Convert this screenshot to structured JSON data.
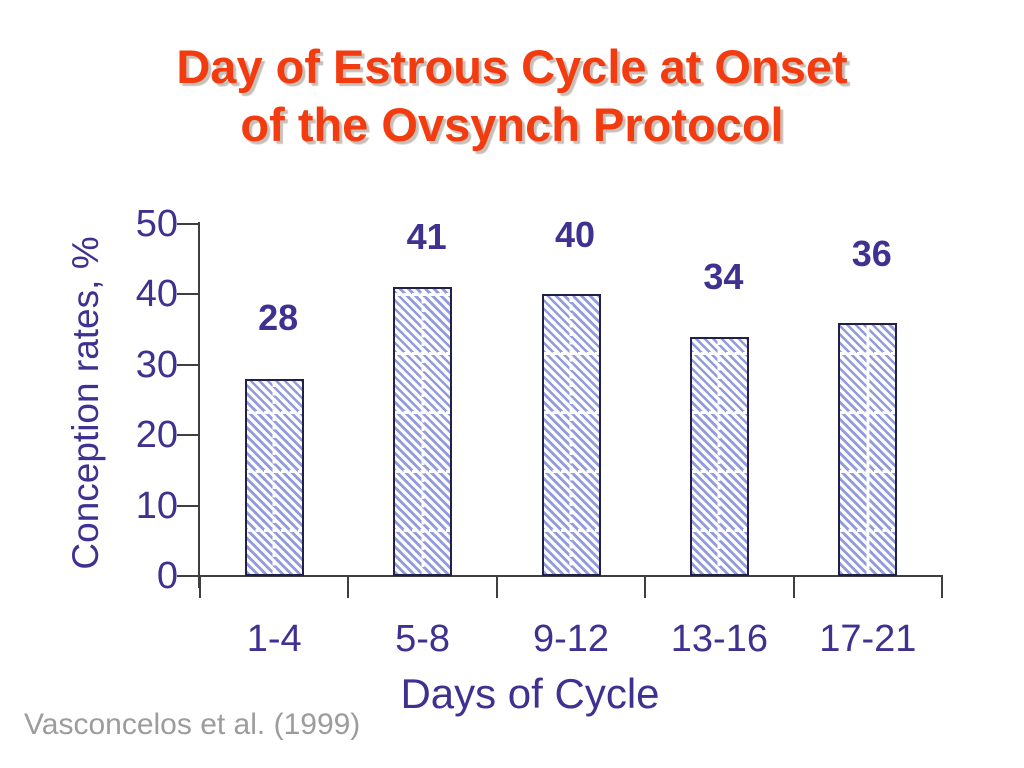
{
  "slide": {
    "title_line1": "Day of Estrous Cycle at Onset",
    "title_line2": "of the Ovsynch Protocol",
    "citation": "Vasconcelos et al. (1999)"
  },
  "chart_data": {
    "type": "bar",
    "title": "Day of Estrous Cycle at Onset of the Ovsynch Protocol",
    "categories": [
      "1-4",
      "5-8",
      "9-12",
      "13-16",
      "17-21"
    ],
    "values": [
      28,
      41,
      40,
      34,
      36
    ],
    "xlabel": "Days of Cycle",
    "ylabel": "Conception rates, %",
    "ylim": [
      0,
      50
    ],
    "yticks": [
      0,
      10,
      20,
      30,
      40,
      50
    ],
    "legend_position": "none",
    "gridlines": "white dashed seams visible inside bars only",
    "bar_fill": "white with blue diagonal hatch",
    "data_labels_shown": true
  },
  "colors": {
    "title_text": "#F33B10",
    "title_shadow": "#C8C0B8",
    "chart_text": "#3E3190",
    "hatch_line": "#929BDB",
    "bar_border": "#20204A",
    "axis_line": "#3F3F3F",
    "citation_text": "#9C9C9C"
  }
}
